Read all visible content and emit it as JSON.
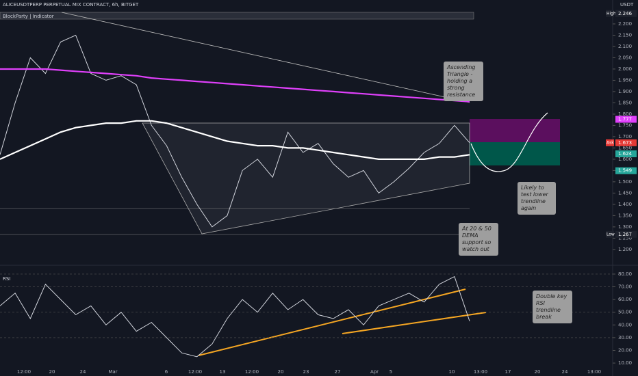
{
  "chart_data": [
    {
      "type": "line",
      "title": "ALICEUSDTPERP PERPETUAL MIX CONTRACT, 6h, BITGET",
      "subtitle": "BlockParty | Indicator",
      "y_axis_label": "USDT",
      "ylim": [
        1.139,
        2.306
      ],
      "yticks": [
        {
          "value": 2.2,
          "label": "2.200"
        },
        {
          "value": 2.15,
          "label": "2.150"
        },
        {
          "value": 2.1,
          "label": "2.100"
        },
        {
          "value": 2.05,
          "label": "2.050"
        },
        {
          "value": 2.0,
          "label": "2.000"
        },
        {
          "value": 1.95,
          "label": "1.950"
        },
        {
          "value": 1.9,
          "label": "1.900"
        },
        {
          "value": 1.85,
          "label": "1.850"
        },
        {
          "value": 1.8,
          "label": "1.800"
        },
        {
          "value": 1.75,
          "label": "1.750"
        },
        {
          "value": 1.7,
          "label": "1.700"
        },
        {
          "value": 1.65,
          "label": "1.650"
        },
        {
          "value": 1.6,
          "label": "1.600"
        },
        {
          "value": 1.55,
          "label": "1.550"
        },
        {
          "value": 1.5,
          "label": "1.500"
        },
        {
          "value": 1.45,
          "label": "1.450"
        },
        {
          "value": 1.4,
          "label": "1.400"
        },
        {
          "value": 1.35,
          "label": "1.350"
        },
        {
          "value": 1.3,
          "label": "1.300"
        },
        {
          "value": 1.25,
          "label": "1.250"
        },
        {
          "value": 1.2,
          "label": "1.200"
        }
      ],
      "series": [
        {
          "color": "#d1d4dc",
          "values": [
            1.62,
            1.85,
            2.05,
            1.98,
            2.12,
            2.15,
            1.98,
            1.95,
            1.97,
            1.93,
            1.75,
            1.66,
            1.52,
            1.4,
            1.3,
            1.35,
            1.55,
            1.6,
            1.52,
            1.72,
            1.63,
            1.67,
            1.58,
            1.52,
            1.55,
            1.45,
            1.5,
            1.56,
            1.63,
            1.67,
            1.75,
            1.673
          ]
        },
        {
          "color": "#e040fb",
          "values": [
            2.0,
            2.0,
            2.0,
            2.0,
            1.995,
            1.99,
            1.985,
            1.98,
            1.975,
            1.97,
            1.96,
            1.955,
            1.95,
            1.945,
            1.94,
            1.935,
            1.93,
            1.925,
            1.92,
            1.915,
            1.91,
            1.905,
            1.9,
            1.895,
            1.89,
            1.885,
            1.88,
            1.875,
            1.87,
            1.865,
            1.86,
            1.855
          ]
        },
        {
          "color": "#ffffff",
          "values": [
            1.6,
            1.63,
            1.66,
            1.69,
            1.72,
            1.74,
            1.75,
            1.76,
            1.76,
            1.77,
            1.77,
            1.76,
            1.74,
            1.72,
            1.7,
            1.68,
            1.67,
            1.66,
            1.66,
            1.65,
            1.65,
            1.64,
            1.63,
            1.62,
            1.61,
            1.6,
            1.6,
            1.6,
            1.6,
            1.61,
            1.61,
            1.62
          ]
        }
      ],
      "price_labels": [
        {
          "label": "High",
          "value": 2.246
        },
        {
          "label": "Low",
          "value": 1.267
        },
        {
          "label": "Ask",
          "value": 1.673
        }
      ],
      "level_labels": [
        {
          "value": 1.777,
          "color": "#e040fb"
        },
        {
          "value": 1.624,
          "color": "#26a69a"
        },
        {
          "value": 1.549,
          "color": "#26a69a"
        }
      ],
      "annotations": [
        "Ascending Triangle - holding a strong resistance",
        "Likely to test lower trendline again",
        "At 20 & 50 DEMA support so watch out"
      ]
    },
    {
      "type": "line",
      "title": "RSI",
      "ylim": [
        5.2,
        84.8
      ],
      "yticks": [
        {
          "value": 80,
          "label": "80.00"
        },
        {
          "value": 70,
          "label": "70.00"
        },
        {
          "value": 60,
          "label": "60.00"
        },
        {
          "value": 50,
          "label": "50.00"
        },
        {
          "value": 40,
          "label": "40.00"
        },
        {
          "value": 30,
          "label": "30.00"
        },
        {
          "value": 20,
          "label": "20.00"
        },
        {
          "value": 10,
          "label": "10.00"
        }
      ],
      "series": [
        {
          "color": "#d1d4dc",
          "values": [
            55,
            65,
            45,
            72,
            60,
            48,
            55,
            40,
            50,
            35,
            42,
            30,
            18,
            15,
            25,
            45,
            60,
            50,
            65,
            52,
            60,
            48,
            45,
            52,
            40,
            55,
            60,
            65,
            58,
            72,
            78,
            43
          ]
        }
      ],
      "xtick_labels": [
        "12:00",
        "20",
        "24",
        "Mar",
        "6",
        "12:00",
        "13",
        "12:00",
        "20",
        "23",
        "27",
        "Apr",
        "5",
        "10",
        "13:00",
        "17",
        "20",
        "24",
        "13:00"
      ],
      "annotations": [
        "Double key RSI trendline break"
      ]
    }
  ]
}
